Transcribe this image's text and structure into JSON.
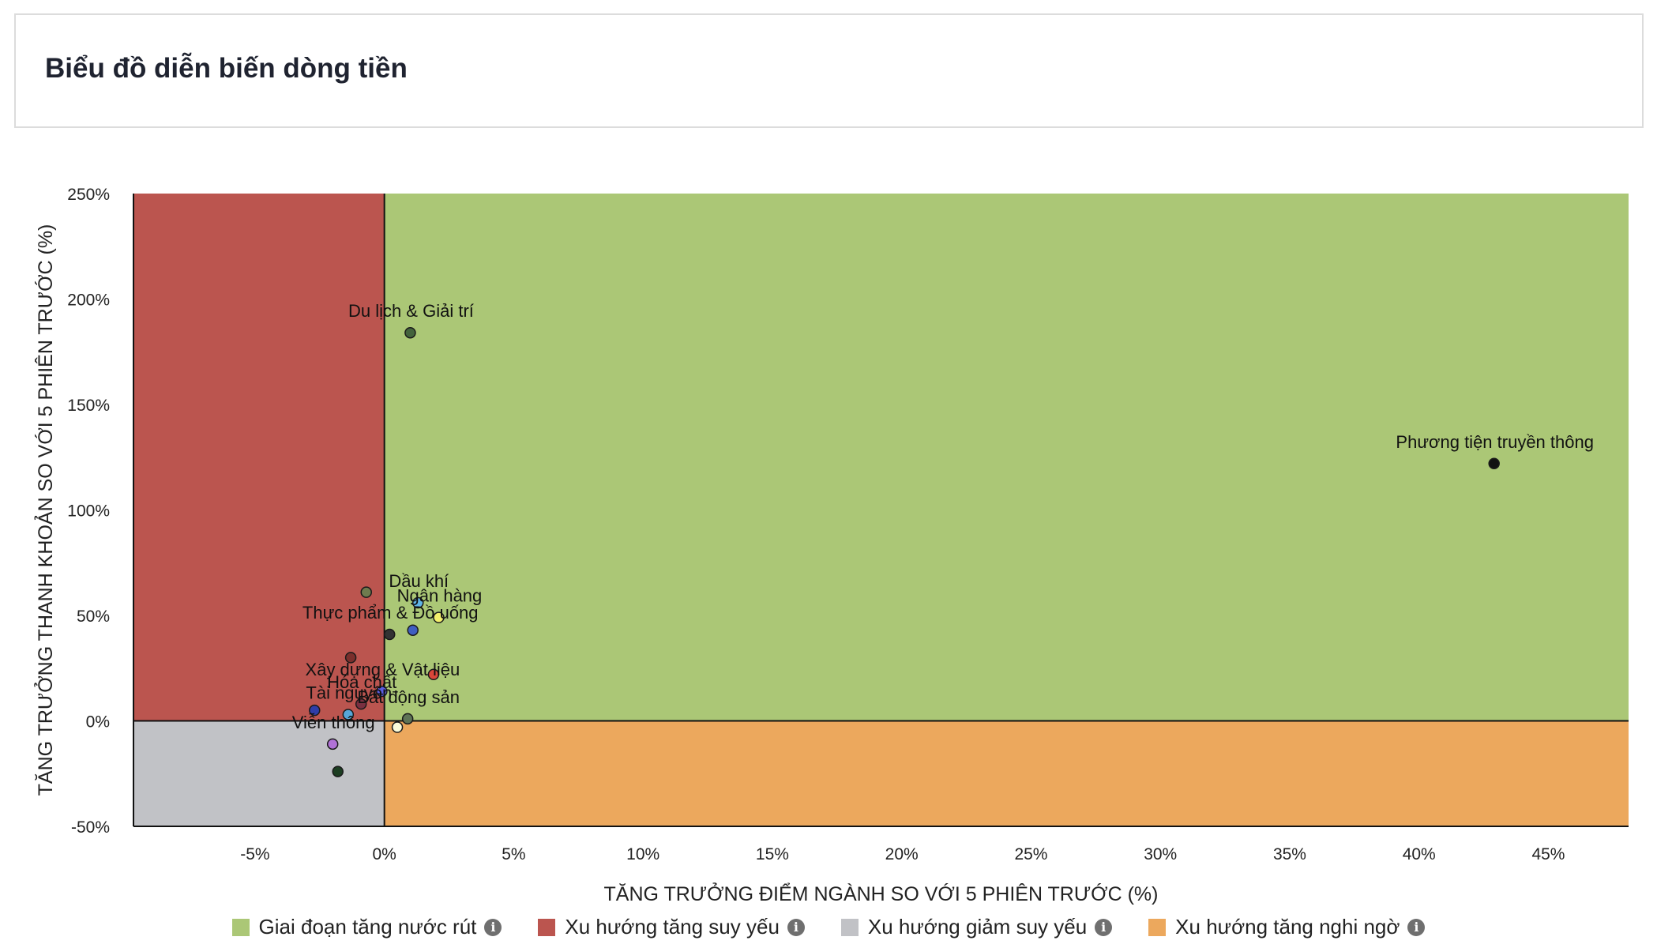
{
  "header": {
    "title": "Biểu đồ diễn biến dòng tiền"
  },
  "chart_data": {
    "type": "scatter",
    "title": "",
    "xlabel": "TĂNG TRƯỞNG ĐIỂM NGÀNH SO VỚI 5 PHIÊN TRƯỚC (%)",
    "ylabel": "TĂNG TRƯỞNG THANH KHOẢN SO VỚI 5 PHIÊN TRƯỚC (%)",
    "xlim": [
      -9.7,
      48.1
    ],
    "ylim": [
      -50,
      250
    ],
    "x_ticks": [
      -5,
      0,
      5,
      10,
      15,
      20,
      25,
      30,
      35,
      40,
      45
    ],
    "x_tick_labels": [
      "-5%",
      "0%",
      "5%",
      "10%",
      "15%",
      "20%",
      "25%",
      "30%",
      "35%",
      "40%",
      "45%"
    ],
    "y_ticks": [
      -50,
      0,
      50,
      100,
      150,
      200,
      250
    ],
    "y_tick_labels": [
      "-50%",
      "0%",
      "50%",
      "100%",
      "150%",
      "200%",
      "250%"
    ],
    "grid": false,
    "legend_position": "bottom-center",
    "quadrants": [
      {
        "name": "Giai đoạn tăng nước rút",
        "color": "#abc776",
        "x": [
          0,
          48.1
        ],
        "y": [
          0,
          250
        ]
      },
      {
        "name": "Xu hướng tăng suy yếu",
        "color": "#bb554f",
        "x": [
          -9.7,
          0
        ],
        "y": [
          0,
          250
        ]
      },
      {
        "name": "Xu hướng giảm suy yếu",
        "color": "#c1c2c6",
        "x": [
          -9.7,
          0
        ],
        "y": [
          -50,
          0
        ]
      },
      {
        "name": "Xu hướng tăng nghi ngờ",
        "color": "#eca85d",
        "x": [
          0,
          48.1
        ],
        "y": [
          -50,
          0
        ]
      }
    ],
    "points": [
      {
        "label": "Du lịch & Giải trí",
        "x": 1.0,
        "y": 184,
        "color": "#43633c"
      },
      {
        "label": "Phương tiện truyền thông",
        "x": 42.9,
        "y": 122,
        "color": "#111111"
      },
      {
        "label": "",
        "x": -0.7,
        "y": 61,
        "color": "#6e7b4e"
      },
      {
        "label": "Dầu khí",
        "x": 1.3,
        "y": 56,
        "color": "#5fb3e6"
      },
      {
        "label": "Ngân hàng",
        "x": 2.1,
        "y": 49,
        "color": "#f4f06c"
      },
      {
        "label": "",
        "x": 1.1,
        "y": 43,
        "color": "#3f5ec0"
      },
      {
        "label": "Thực phẩm & Đồ uống",
        "x": 0.2,
        "y": 41,
        "color": "#333333"
      },
      {
        "label": "",
        "x": -1.3,
        "y": 30,
        "color": "#7a2f2c"
      },
      {
        "label": "",
        "x": 1.9,
        "y": 22,
        "color": "#d9463a"
      },
      {
        "label": "Xây dựng & Vật liệu",
        "x": -0.1,
        "y": 14,
        "color": "#5a5de0"
      },
      {
        "label": "Hóa chất",
        "x": -0.9,
        "y": 8,
        "color": "#7a3040"
      },
      {
        "label": "",
        "x": -2.7,
        "y": 5,
        "color": "#2f3da8"
      },
      {
        "label": "Tài nguyên",
        "x": -1.4,
        "y": 3,
        "color": "#57a6d8"
      },
      {
        "label": "Bất động sản",
        "x": 0.9,
        "y": 1,
        "color": "#5e7356"
      },
      {
        "label": "",
        "x": 0.5,
        "y": -3,
        "color": "#fbfbd9"
      },
      {
        "label": "Viễn thông",
        "x": -2.0,
        "y": -11,
        "color": "#b072d6"
      },
      {
        "label": "",
        "x": -1.8,
        "y": -24,
        "color": "#1d3e22"
      }
    ]
  },
  "legend": {
    "items": [
      {
        "label": "Giai đoạn tăng nước rút",
        "color": "#abc776",
        "icon": "info-icon"
      },
      {
        "label": "Xu hướng tăng suy yếu",
        "color": "#bb554f",
        "icon": "info-icon"
      },
      {
        "label": "Xu hướng giảm suy yếu",
        "color": "#c1c2c6",
        "icon": "info-icon"
      },
      {
        "label": "Xu hướng tăng nghi ngờ",
        "color": "#eca85d",
        "icon": "info-icon"
      }
    ]
  }
}
